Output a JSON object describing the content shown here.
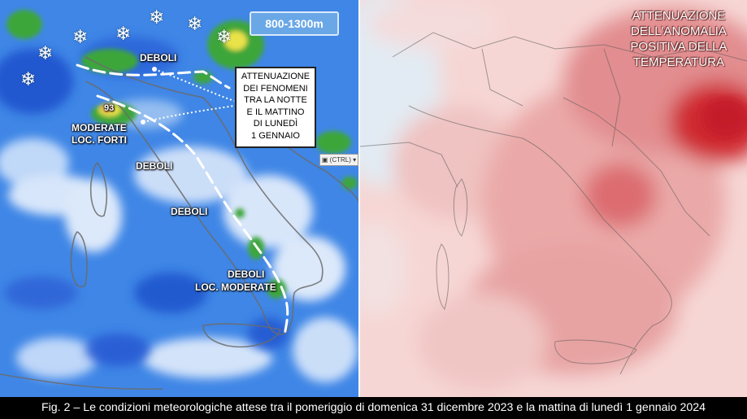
{
  "left_map": {
    "altitude_badge": "800-1300m",
    "labels": {
      "deboli_north": "DEBOLI",
      "value_93": "93",
      "moderate": "MODERATE",
      "loc_forti": "LOC. FORTI",
      "deboli_tyrrhenian": "DEBOLI",
      "deboli_central": "DEBOLI",
      "deboli_south": "DEBOLI",
      "loc_moderate": "LOC. MODERATE"
    },
    "note_lines": [
      "ATTENUAZIONE",
      "DEI FENOMENI",
      "TRA LA NOTTE",
      "E IL MATTINO",
      "DI LUNEDÌ",
      "1 GENNAIO"
    ],
    "ctrl_label": "(CTRL)",
    "snow_glyph": "❄",
    "colors": {
      "sea_blue": "#3f86e6",
      "precip_green": "#3ea63a",
      "precip_yellow": "#e9e24a"
    }
  },
  "right_map": {
    "title_lines": [
      "ATTENUAZIONE",
      "DELL'ANOMALIA",
      "POSITIVA DELLA",
      "TEMPERATURA"
    ],
    "colors": {
      "anomaly_light": "#f4cfcf",
      "anomaly_strong": "#cf2a33"
    }
  },
  "caption": "Fig. 2 – Le condizioni meteorologiche attese tra il pomeriggio di domenica 31 dicembre 2023 e la mattina di lunedì 1 gennaio 2024"
}
